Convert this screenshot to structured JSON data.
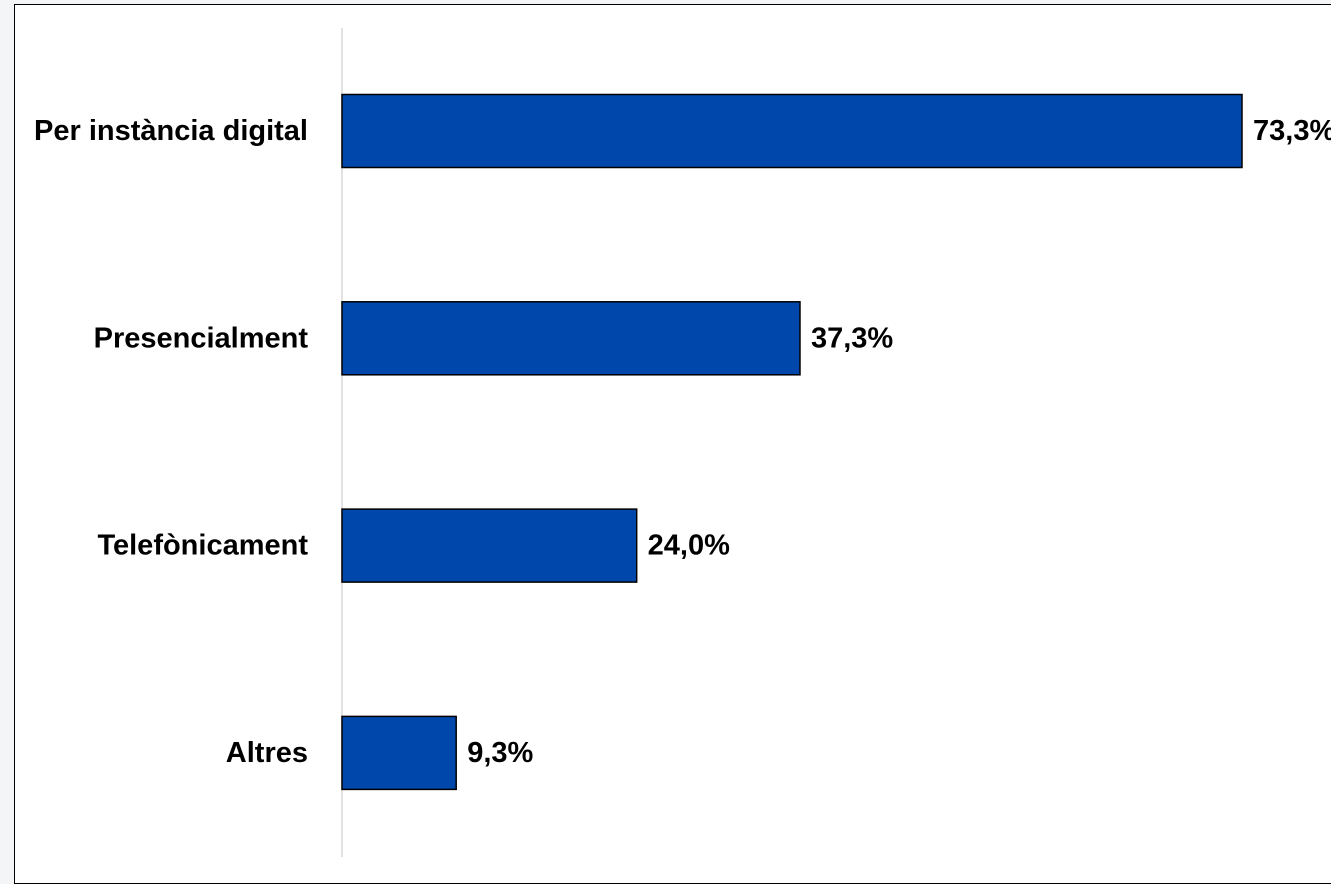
{
  "chart_data": {
    "type": "bar",
    "orientation": "horizontal",
    "categories": [
      "Per instància digital",
      "Presencialment",
      "Telefònicament",
      "Altres"
    ],
    "values": [
      73.3,
      37.3,
      24.0,
      9.3
    ],
    "value_labels": [
      "73,3%",
      "37,3%",
      "24,0%",
      "9,3%"
    ],
    "unit": "%",
    "xlim": [
      0,
      73.3
    ],
    "grid": false,
    "legend": "none",
    "colors": {
      "bar": "#0047AB",
      "bar_border": "#000000",
      "axis_line": "#d9d9d9",
      "frame": "#000000",
      "background": "#ffffff"
    }
  }
}
